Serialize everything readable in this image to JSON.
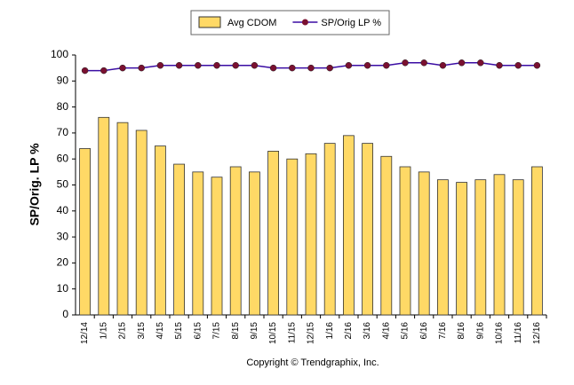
{
  "chart_data": {
    "type": "bar",
    "y_label": "SP/Orig. LP %",
    "footer": "Copyright © Trendgraphix, Inc.",
    "categories": [
      "12/14",
      "1/15",
      "2/15",
      "3/15",
      "4/15",
      "5/15",
      "6/15",
      "7/15",
      "8/15",
      "9/15",
      "10/15",
      "11/15",
      "12/15",
      "1/16",
      "2/16",
      "3/16",
      "4/16",
      "5/16",
      "6/16",
      "7/16",
      "8/16",
      "9/16",
      "10/16",
      "11/16",
      "12/16"
    ],
    "series": [
      {
        "name": "Avg CDOM",
        "type": "bar",
        "color": "#ffd966",
        "values": [
          64,
          76,
          74,
          71,
          65,
          58,
          55,
          53,
          57,
          55,
          63,
          60,
          62,
          66,
          69,
          66,
          61,
          57,
          55,
          52,
          51,
          52,
          54,
          52,
          57
        ]
      },
      {
        "name": "SP/Orig LP %",
        "type": "line",
        "color": "#3a0ca3",
        "marker_color": "#7a1030",
        "values": [
          94,
          94,
          95,
          95,
          96,
          96,
          96,
          96,
          96,
          96,
          95,
          95,
          95,
          95,
          96,
          96,
          96,
          97,
          97,
          96,
          97,
          97,
          96,
          96,
          96
        ]
      }
    ],
    "ylim": [
      0,
      100
    ],
    "yticks": [
      0,
      10,
      20,
      30,
      40,
      50,
      60,
      70,
      80,
      90,
      100
    ],
    "grid": false,
    "legend": "top"
  }
}
